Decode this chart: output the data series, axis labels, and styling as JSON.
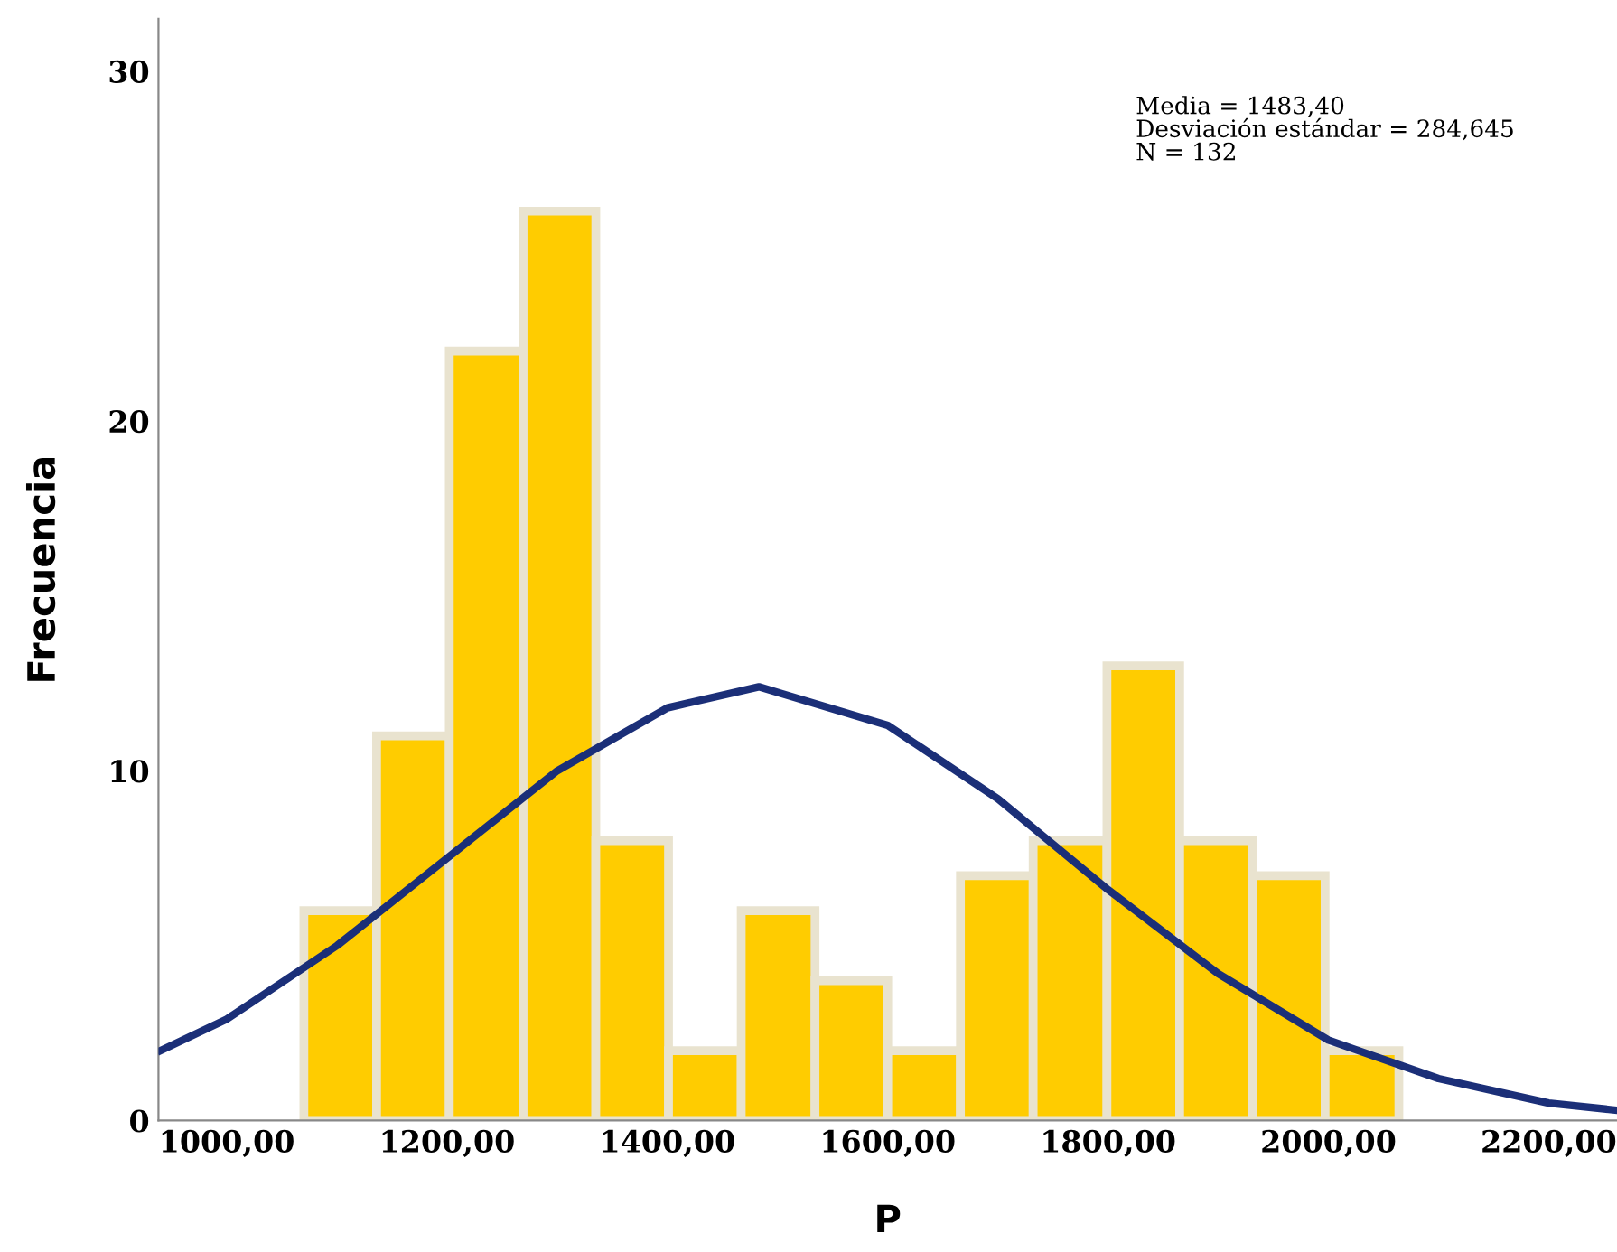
{
  "chart_data": {
    "type": "histogram",
    "xlabel": "P",
    "ylabel": "Frecuencia",
    "bins": [
      1070,
      1136,
      1202,
      1269,
      1335,
      1401,
      1467,
      1534,
      1600,
      1666,
      1732,
      1799,
      1865,
      1931,
      1997,
      2064
    ],
    "values": [
      6,
      11,
      22,
      26,
      8,
      2,
      6,
      4,
      2,
      7,
      8,
      13,
      8,
      7,
      2
    ],
    "color": "#ffcc00",
    "series": [
      {
        "type": "line",
        "color": "#1b2f78",
        "x": [
          940,
          1000,
          1100,
          1200,
          1300,
          1400,
          1483,
          1600,
          1700,
          1800,
          1900,
          2000,
          2100,
          2200,
          2260
        ],
        "values": [
          2.0,
          2.9,
          5.0,
          7.5,
          10.0,
          11.8,
          12.4,
          11.3,
          9.2,
          6.6,
          4.2,
          2.3,
          1.2,
          0.5,
          0.3
        ]
      }
    ],
    "xlim": [
      938,
      2262
    ],
    "ylim": [
      0,
      31.5
    ],
    "xticks": [
      {
        "value": 1000,
        "label": "1000,00"
      },
      {
        "value": 1200,
        "label": "1200,00"
      },
      {
        "value": 1400,
        "label": "1400,00"
      },
      {
        "value": 1600,
        "label": "1600,00"
      },
      {
        "value": 1800,
        "label": "1800,00"
      },
      {
        "value": 2000,
        "label": "2000,00"
      },
      {
        "value": 2200,
        "label": "2200,00"
      }
    ],
    "yticks": [
      0,
      10,
      20,
      30
    ],
    "grid": false,
    "annotations": [
      "Media = 1483,40\nDesviación estándar = 284,645\nN = 132"
    ]
  }
}
